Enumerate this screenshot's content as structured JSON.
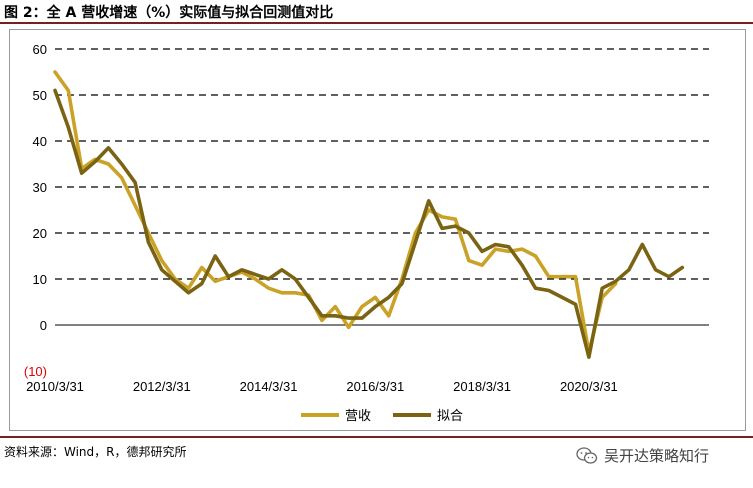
{
  "header": {
    "title": "图 2：全 A 营收增速（%）实际值与拟合回测值对比"
  },
  "footer": {
    "source": "资料来源：Wind，R，德邦研究所",
    "brand": "吴开达策略知行",
    "brand_icon": "wechat-icon"
  },
  "colors": {
    "rule": "#7a1f1f",
    "revenue": "#C9A227",
    "fit": "#7A6312",
    "neg_label": "#e00000"
  },
  "chart_data": {
    "type": "line",
    "title": "",
    "xlabel": "",
    "ylabel": "",
    "ylim": [
      -10,
      60
    ],
    "yticks": [
      -10,
      0,
      10,
      20,
      30,
      40,
      50,
      60
    ],
    "ytick_labels": [
      "(10)",
      "0",
      "10",
      "20",
      "30",
      "40",
      "50",
      "60"
    ],
    "grid": "horizontal dashed",
    "legend_position": "bottom-center",
    "x_tick_labels": [
      "2010/3/31",
      "2012/3/31",
      "2014/3/31",
      "2016/3/31",
      "2018/3/31",
      "2020/3/31"
    ],
    "x": [
      "2010Q1",
      "2010Q2",
      "2010Q3",
      "2010Q4",
      "2011Q1",
      "2011Q2",
      "2011Q3",
      "2011Q4",
      "2012Q1",
      "2012Q2",
      "2012Q3",
      "2012Q4",
      "2013Q1",
      "2013Q2",
      "2013Q3",
      "2013Q4",
      "2014Q1",
      "2014Q2",
      "2014Q3",
      "2014Q4",
      "2015Q1",
      "2015Q2",
      "2015Q3",
      "2015Q4",
      "2016Q1",
      "2016Q2",
      "2016Q3",
      "2016Q4",
      "2017Q1",
      "2017Q2",
      "2017Q3",
      "2017Q4",
      "2018Q1",
      "2018Q2",
      "2018Q3",
      "2018Q4",
      "2019Q1",
      "2019Q2",
      "2019Q3",
      "2019Q4",
      "2020Q1",
      "2020Q2",
      "2020Q3",
      "2020Q4",
      "2021Q1",
      "2021Q2",
      "2021Q3",
      "2021Q4",
      "2022Q1",
      "2022Q2"
    ],
    "series": [
      {
        "name": "营收",
        "color": "#C9A227",
        "values": [
          55,
          51,
          34,
          36,
          35,
          32,
          26,
          20,
          14,
          10,
          8,
          12.5,
          9.5,
          10.5,
          11.5,
          10,
          8,
          7,
          7,
          6.5,
          1,
          4,
          -0.5,
          4,
          6,
          2,
          10,
          20,
          25,
          23.5,
          23,
          14,
          13,
          16.5,
          16,
          16.5,
          15,
          10.5,
          10.5,
          10.5,
          -6,
          6,
          9,
          null,
          null,
          null,
          null,
          null,
          null,
          null
        ]
      },
      {
        "name": "拟合",
        "color": "#7A6312",
        "values": [
          51,
          43,
          33,
          35.5,
          38.5,
          35,
          31,
          18,
          12,
          9.5,
          7,
          9,
          15,
          10.5,
          12,
          11,
          10,
          12,
          10,
          6,
          2,
          2,
          1.5,
          1.5,
          4,
          6,
          9,
          18,
          27,
          21,
          21.5,
          20,
          16,
          17.5,
          17,
          13,
          8,
          7.5,
          6,
          4.5,
          -7,
          8,
          9.5,
          12,
          17.5,
          12,
          10.5,
          12.5,
          null,
          null
        ]
      }
    ]
  }
}
